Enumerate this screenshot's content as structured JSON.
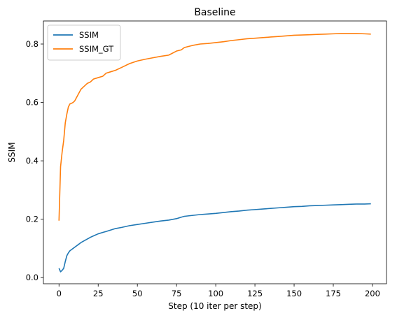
{
  "chart_data": {
    "type": "line",
    "title": "Baseline",
    "xlabel": "Step (10 iter per step)",
    "ylabel": "SSIM",
    "xlim": [
      -9.95,
      208.95
    ],
    "ylim": [
      -0.021,
      0.879
    ],
    "xticks": [
      0,
      25,
      50,
      75,
      100,
      125,
      150,
      175,
      200
    ],
    "yticks": [
      0.0,
      0.2,
      0.4,
      0.6,
      0.8
    ],
    "grid": false,
    "legend_position": "top-left",
    "series": [
      {
        "name": "SSIM",
        "color": "#1f77b4",
        "x": [
          0,
          1,
          2,
          3,
          4,
          5,
          6,
          7,
          8,
          9,
          10,
          12,
          14,
          16,
          18,
          20,
          22,
          25,
          28,
          30,
          33,
          36,
          40,
          45,
          50,
          55,
          60,
          65,
          70,
          75,
          78,
          80,
          85,
          90,
          95,
          100,
          105,
          110,
          115,
          120,
          125,
          130,
          135,
          140,
          145,
          150,
          155,
          160,
          165,
          170,
          175,
          180,
          185,
          190,
          195,
          199
        ],
        "y": [
          0.032,
          0.02,
          0.025,
          0.032,
          0.055,
          0.075,
          0.085,
          0.092,
          0.096,
          0.1,
          0.104,
          0.112,
          0.12,
          0.126,
          0.132,
          0.138,
          0.143,
          0.15,
          0.155,
          0.158,
          0.163,
          0.168,
          0.172,
          0.178,
          0.182,
          0.186,
          0.19,
          0.194,
          0.197,
          0.202,
          0.207,
          0.21,
          0.213,
          0.216,
          0.218,
          0.22,
          0.223,
          0.226,
          0.228,
          0.231,
          0.233,
          0.235,
          0.237,
          0.239,
          0.241,
          0.243,
          0.244,
          0.246,
          0.247,
          0.248,
          0.249,
          0.25,
          0.251,
          0.252,
          0.252,
          0.253
        ]
      },
      {
        "name": "SSIM_GT",
        "color": "#ff7f0e",
        "x": [
          0,
          1,
          2,
          3,
          4,
          5,
          6,
          7,
          8,
          9,
          10,
          12,
          14,
          16,
          18,
          20,
          22,
          25,
          28,
          30,
          33,
          36,
          40,
          45,
          50,
          55,
          60,
          65,
          70,
          75,
          78,
          80,
          85,
          90,
          95,
          100,
          105,
          110,
          115,
          120,
          125,
          130,
          135,
          140,
          145,
          150,
          155,
          160,
          165,
          170,
          175,
          180,
          185,
          190,
          195,
          199
        ],
        "y": [
          0.195,
          0.38,
          0.43,
          0.47,
          0.53,
          0.56,
          0.585,
          0.595,
          0.597,
          0.6,
          0.605,
          0.625,
          0.645,
          0.655,
          0.665,
          0.67,
          0.68,
          0.685,
          0.69,
          0.7,
          0.705,
          0.71,
          0.72,
          0.733,
          0.742,
          0.748,
          0.753,
          0.758,
          0.762,
          0.776,
          0.78,
          0.788,
          0.795,
          0.8,
          0.802,
          0.805,
          0.808,
          0.812,
          0.815,
          0.818,
          0.82,
          0.822,
          0.824,
          0.826,
          0.828,
          0.83,
          0.831,
          0.832,
          0.833,
          0.834,
          0.835,
          0.836,
          0.836,
          0.836,
          0.835,
          0.834
        ]
      }
    ]
  }
}
